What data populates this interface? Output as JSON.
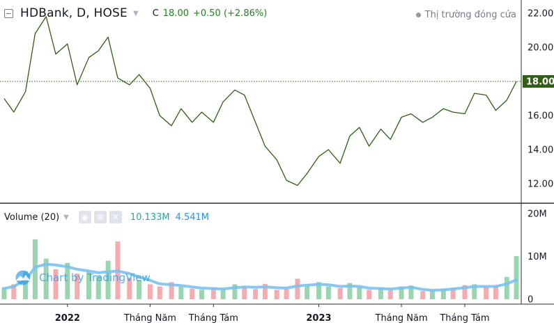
{
  "header": {
    "symbol_title": "HDBank, D, HOSE",
    "close_prefix": "C",
    "close_value": "18.00",
    "change": "+0.50 (+2.86%)",
    "market_status": "Thị trường đóng cửa"
  },
  "volume_legend": {
    "label": "Volume (20)",
    "volume_value": "10.133M",
    "ma_value": "4.541M"
  },
  "watermark": "Chart by TradingView",
  "colors": {
    "price_line": "#2f5e14",
    "last_price_badge": "#2f5e14",
    "volume_up": "#8ed0a6",
    "volume_down": "#f4a3a8",
    "volume_ma": "#79c2f2",
    "accent_green": "#22831d",
    "accent_blue": "#2196f3"
  },
  "chart_data": [
    {
      "type": "line",
      "name": "price",
      "x_ticks": [
        "2022",
        "Tháng Năm",
        "Tháng Tám",
        "2023",
        "Tháng Năm",
        "Tháng Tám"
      ],
      "y_ticks": [
        "12.00",
        "14.00",
        "16.00",
        "18.00",
        "20.00",
        "22.00"
      ],
      "ylim": [
        10.6,
        22.4
      ],
      "last_price_label": "18.00",
      "last_price": 18.0,
      "grid": false,
      "x": [
        "2021-10-01",
        "2021-10-15",
        "2021-11-01",
        "2021-11-15",
        "2021-12-01",
        "2021-12-15",
        "2022-01-01",
        "2022-01-15",
        "2022-02-01",
        "2022-02-15",
        "2022-03-01",
        "2022-03-15",
        "2022-04-01",
        "2022-04-15",
        "2022-05-01",
        "2022-05-15",
        "2022-06-01",
        "2022-06-15",
        "2022-07-01",
        "2022-07-15",
        "2022-08-01",
        "2022-08-15",
        "2022-09-01",
        "2022-09-15",
        "2022-10-01",
        "2022-10-15",
        "2022-11-01",
        "2022-11-15",
        "2022-12-01",
        "2022-12-15",
        "2023-01-01",
        "2023-01-15",
        "2023-02-01",
        "2023-02-15",
        "2023-03-01",
        "2023-03-15",
        "2023-04-01",
        "2023-04-15",
        "2023-05-01",
        "2023-05-15",
        "2023-06-01",
        "2023-06-15",
        "2023-07-01",
        "2023-07-15",
        "2023-08-01",
        "2023-08-15",
        "2023-09-01",
        "2023-09-15",
        "2023-10-01",
        "2023-10-15"
      ],
      "values": [
        17.0,
        16.2,
        17.4,
        20.8,
        21.8,
        19.6,
        20.2,
        17.8,
        19.4,
        19.8,
        20.6,
        18.2,
        17.8,
        18.4,
        17.6,
        16.0,
        15.4,
        16.4,
        15.6,
        16.2,
        15.6,
        16.8,
        17.5,
        17.2,
        15.6,
        14.2,
        13.4,
        12.2,
        11.9,
        12.6,
        13.6,
        14.0,
        13.2,
        14.8,
        15.3,
        14.2,
        15.2,
        14.6,
        15.9,
        16.1,
        15.6,
        15.9,
        16.4,
        16.2,
        16.1,
        17.3,
        17.2,
        16.3,
        16.9,
        18.0
      ]
    },
    {
      "type": "bar",
      "name": "Volume",
      "y_ticks": [
        "0",
        "10M",
        "20M"
      ],
      "ylim": [
        0,
        21
      ],
      "unit": "M",
      "x": [
        "2021-10-01",
        "2021-10-15",
        "2021-11-01",
        "2021-11-15",
        "2021-12-01",
        "2021-12-15",
        "2022-01-01",
        "2022-01-15",
        "2022-02-01",
        "2022-02-15",
        "2022-03-01",
        "2022-03-15",
        "2022-04-01",
        "2022-04-15",
        "2022-05-01",
        "2022-05-15",
        "2022-06-01",
        "2022-06-15",
        "2022-07-01",
        "2022-07-15",
        "2022-08-01",
        "2022-08-15",
        "2022-09-01",
        "2022-09-15",
        "2022-10-01",
        "2022-10-15",
        "2022-11-01",
        "2022-11-15",
        "2022-12-01",
        "2022-12-15",
        "2023-01-01",
        "2023-01-15",
        "2023-02-01",
        "2023-02-15",
        "2023-03-01",
        "2023-03-15",
        "2023-04-01",
        "2023-04-15",
        "2023-05-01",
        "2023-05-15",
        "2023-06-01",
        "2023-06-15",
        "2023-07-01",
        "2023-07-15",
        "2023-08-01",
        "2023-08-15",
        "2023-09-01",
        "2023-09-15",
        "2023-10-01",
        "2023-10-15"
      ],
      "values": [
        2.8,
        3.5,
        6.5,
        14.0,
        9.5,
        7.0,
        8.5,
        6.0,
        6.5,
        5.5,
        9.0,
        13.5,
        5.0,
        4.5,
        3.5,
        3.0,
        4.0,
        3.0,
        2.5,
        2.2,
        2.6,
        2.3,
        3.5,
        3.0,
        2.4,
        3.6,
        2.2,
        2.6,
        4.8,
        3.0,
        4.0,
        3.0,
        2.6,
        3.8,
        2.8,
        2.2,
        2.6,
        2.4,
        3.0,
        3.2,
        1.9,
        2.0,
        2.4,
        2.7,
        3.3,
        3.5,
        2.9,
        3.2,
        5.2,
        10.1
      ],
      "up": [
        true,
        false,
        true,
        true,
        true,
        false,
        true,
        false,
        true,
        true,
        true,
        false,
        false,
        true,
        false,
        false,
        false,
        true,
        false,
        true,
        false,
        true,
        true,
        false,
        false,
        false,
        false,
        false,
        false,
        true,
        true,
        true,
        false,
        true,
        true,
        false,
        true,
        false,
        true,
        true,
        false,
        true,
        true,
        false,
        false,
        true,
        false,
        false,
        true,
        true
      ],
      "ma_values": [
        2.5,
        3.0,
        4.5,
        7.5,
        8.2,
        8.0,
        7.6,
        7.0,
        6.6,
        6.2,
        6.4,
        6.6,
        6.0,
        5.2,
        4.4,
        3.6,
        3.4,
        3.2,
        2.9,
        2.6,
        2.5,
        2.4,
        2.7,
        2.9,
        2.8,
        2.9,
        2.7,
        2.6,
        3.1,
        3.3,
        3.5,
        3.4,
        3.0,
        3.1,
        3.0,
        2.6,
        2.5,
        2.4,
        2.6,
        2.8,
        2.3,
        2.1,
        2.2,
        2.4,
        2.7,
        3.0,
        3.0,
        3.0,
        3.6,
        4.541
      ]
    }
  ]
}
